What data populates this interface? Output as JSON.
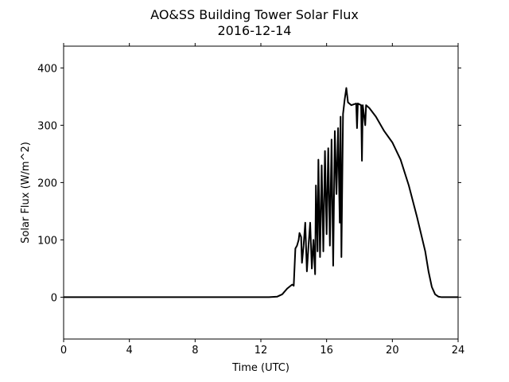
{
  "chart_data": {
    "type": "line",
    "title": "AO&SS Building Tower Solar Flux",
    "subtitle": "2016-12-14",
    "x_label": "Time (UTC)",
    "y_label": "Solar Flux (W/m^2)",
    "x": [
      0,
      12.5,
      13,
      13.3,
      13.6,
      13.9,
      14.0,
      14.1,
      14.2,
      14.3,
      14.35,
      14.45,
      14.5,
      14.6,
      14.7,
      14.8,
      14.9,
      15.0,
      15.1,
      15.2,
      15.3,
      15.35,
      15.45,
      15.5,
      15.6,
      15.7,
      15.8,
      15.9,
      16.0,
      16.1,
      16.2,
      16.3,
      16.4,
      16.5,
      16.6,
      16.7,
      16.8,
      16.85,
      16.9,
      17.0,
      17.1,
      17.2,
      17.3,
      17.5,
      17.8,
      17.85,
      17.9,
      18.1,
      18.15,
      18.2,
      18.35,
      18.4,
      18.6,
      19.0,
      19.5,
      20.0,
      20.5,
      21.0,
      21.5,
      22.0,
      22.2,
      22.4,
      22.6,
      22.8,
      23,
      24
    ],
    "series": [
      {
        "name": "Solar Flux",
        "color": "#000000",
        "values": [
          0,
          0,
          1,
          5,
          15,
          22,
          20,
          85,
          90,
          100,
          112,
          105,
          60,
          90,
          130,
          45,
          90,
          130,
          50,
          100,
          40,
          195,
          80,
          240,
          70,
          230,
          80,
          255,
          110,
          260,
          90,
          275,
          55,
          290,
          180,
          295,
          130,
          315,
          70,
          320,
          345,
          365,
          340,
          335,
          338,
          295,
          338,
          335,
          238,
          335,
          300,
          335,
          330,
          315,
          290,
          270,
          240,
          195,
          140,
          80,
          45,
          18,
          5,
          1,
          0,
          0
        ]
      }
    ],
    "xlim": [
      0,
      24
    ],
    "xticks": [
      0,
      4,
      8,
      12,
      16,
      20,
      24
    ],
    "ylim": [
      -73,
      438
    ],
    "yticks": [
      0,
      100,
      200,
      300,
      400
    ]
  }
}
